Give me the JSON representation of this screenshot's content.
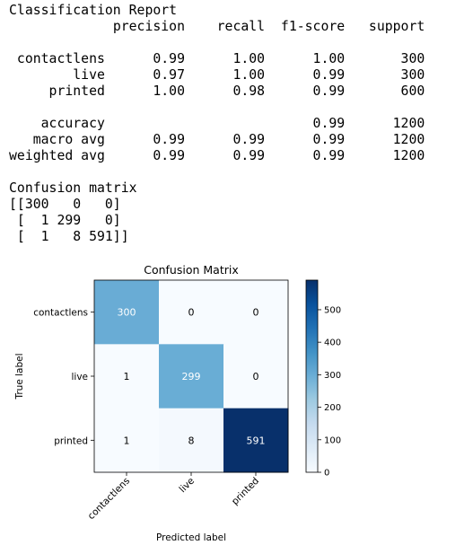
{
  "report": {
    "title": "Classification Report",
    "headers": [
      "precision",
      "recall",
      "f1-score",
      "support"
    ],
    "rows": [
      {
        "label": "contactlens",
        "precision": "0.99",
        "recall": "1.00",
        "f1": "1.00",
        "support": "300"
      },
      {
        "label": "live",
        "precision": "0.97",
        "recall": "1.00",
        "f1": "0.99",
        "support": "300"
      },
      {
        "label": "printed",
        "precision": "1.00",
        "recall": "0.98",
        "f1": "0.99",
        "support": "600"
      }
    ],
    "summary": [
      {
        "label": "accuracy",
        "precision": "",
        "recall": "",
        "f1": "0.99",
        "support": "1200"
      },
      {
        "label": "macro avg",
        "precision": "0.99",
        "recall": "0.99",
        "f1": "0.99",
        "support": "1200"
      },
      {
        "label": "weighted avg",
        "precision": "0.99",
        "recall": "0.99",
        "f1": "0.99",
        "support": "1200"
      }
    ]
  },
  "confusion_text": {
    "title": "Confusion matrix",
    "rows": [
      "[[300   0   0]",
      " [  1 299   0]",
      " [  1   8 591]]"
    ]
  },
  "chart_data": {
    "type": "heatmap",
    "title": "Confusion Matrix",
    "xlabel": "Predicted label",
    "ylabel": "True label",
    "classes": [
      "contactlens",
      "live",
      "printed"
    ],
    "matrix": [
      [
        300,
        0,
        0
      ],
      [
        1,
        299,
        0
      ],
      [
        1,
        8,
        591
      ]
    ],
    "colormap": "Blues",
    "colorbar": {
      "min": 0,
      "max": 591,
      "ticks": [
        0,
        100,
        200,
        300,
        400,
        500
      ]
    },
    "colors": {
      "low": "#f7fbff",
      "high": "#08306b",
      "text_dark": "#000000",
      "text_light": "#ffffff"
    }
  }
}
